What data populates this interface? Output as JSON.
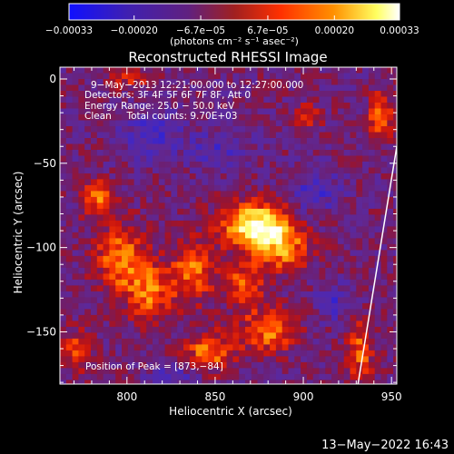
{
  "chart_data": {
    "type": "heatmap",
    "title": "Reconstructed RHESSI Image",
    "xlabel": "Heliocentric X (arcsec)",
    "ylabel": "Heliocentric Y (arcsec)",
    "xlim": [
      762,
      953
    ],
    "ylim": [
      -181,
      7
    ],
    "x_ticks": [
      "800",
      "850",
      "900",
      "950"
    ],
    "x_tick_values": [
      800,
      850,
      900,
      950
    ],
    "y_ticks": [
      "0",
      "−50",
      "−100",
      "−150"
    ],
    "y_tick_values": [
      0,
      -50,
      -100,
      -150
    ],
    "colorbar": {
      "ticks": [
        "−0.00033",
        "−0.00020",
        "−6.7e−05",
        "6.7e−05",
        "0.00020",
        "0.00033"
      ],
      "tick_values": [
        -0.00033,
        -0.0002,
        -6.7e-05,
        6.7e-05,
        0.0002,
        0.00033
      ],
      "range": [
        -0.00033,
        0.00033
      ],
      "unit_label": "(photons cm⁻² s⁻¹ asec⁻²)",
      "colors": [
        "#1010ff",
        "#4020b0",
        "#602080",
        "#a02020",
        "#ff3000",
        "#ff9000",
        "#ffff60",
        "#ffffff"
      ]
    },
    "annotations": [
      "9−May−2013 12:21:00.000 to 12:27:00.000",
      "Detectors: 3F 4F 5F 6F 7F 8F, Att 0",
      "Energy Range: 25.0 − 50.0 keV",
      "Clean     Total counts: 9.70E+03"
    ],
    "peak_label": "Position of Peak = [873,−84]",
    "peak": [
      873,
      -84
    ],
    "limb_line": [
      [
        931,
        -181
      ],
      [
        953,
        -40
      ]
    ],
    "hotspots": [
      {
        "x": 872,
        "y": -85,
        "amp": 1.0,
        "sx": 13,
        "sy": 9
      },
      {
        "x": 887,
        "y": -100,
        "amp": 0.55,
        "sx": 10,
        "sy": 9
      },
      {
        "x": 795,
        "y": -105,
        "amp": 0.55,
        "sx": 10,
        "sy": 14
      },
      {
        "x": 812,
        "y": -125,
        "amp": 0.5,
        "sx": 9,
        "sy": 12
      },
      {
        "x": 782,
        "y": -70,
        "amp": 0.5,
        "sx": 6,
        "sy": 8
      },
      {
        "x": 836,
        "y": -112,
        "amp": 0.55,
        "sx": 8,
        "sy": 12
      },
      {
        "x": 845,
        "y": -160,
        "amp": 0.55,
        "sx": 9,
        "sy": 8
      },
      {
        "x": 878,
        "y": -148,
        "amp": 0.5,
        "sx": 11,
        "sy": 9
      },
      {
        "x": 865,
        "y": -120,
        "amp": 0.45,
        "sx": 8,
        "sy": 10
      },
      {
        "x": 930,
        "y": -160,
        "amp": 0.45,
        "sx": 6,
        "sy": 12
      },
      {
        "x": 942,
        "y": -20,
        "amp": 0.5,
        "sx": 5,
        "sy": 9
      },
      {
        "x": 900,
        "y": -20,
        "amp": 0.3,
        "sx": 6,
        "sy": 5
      },
      {
        "x": 770,
        "y": -160,
        "amp": 0.4,
        "sx": 6,
        "sy": 9
      },
      {
        "x": 800,
        "y": 2,
        "amp": 0.3,
        "sx": 8,
        "sy": 4
      },
      {
        "x": 905,
        "y": -65,
        "amp": -0.3,
        "sx": 10,
        "sy": 9
      },
      {
        "x": 812,
        "y": -30,
        "amp": -0.3,
        "sx": 12,
        "sy": 10
      },
      {
        "x": 850,
        "y": -40,
        "amp": -0.25,
        "sx": 12,
        "sy": 8
      },
      {
        "x": 915,
        "y": -130,
        "amp": -0.3,
        "sx": 6,
        "sy": 8
      },
      {
        "x": 825,
        "y": -175,
        "amp": -0.25,
        "sx": 10,
        "sy": 6
      }
    ]
  },
  "footer": {
    "timestamp": "13−May−2022 16:43"
  }
}
